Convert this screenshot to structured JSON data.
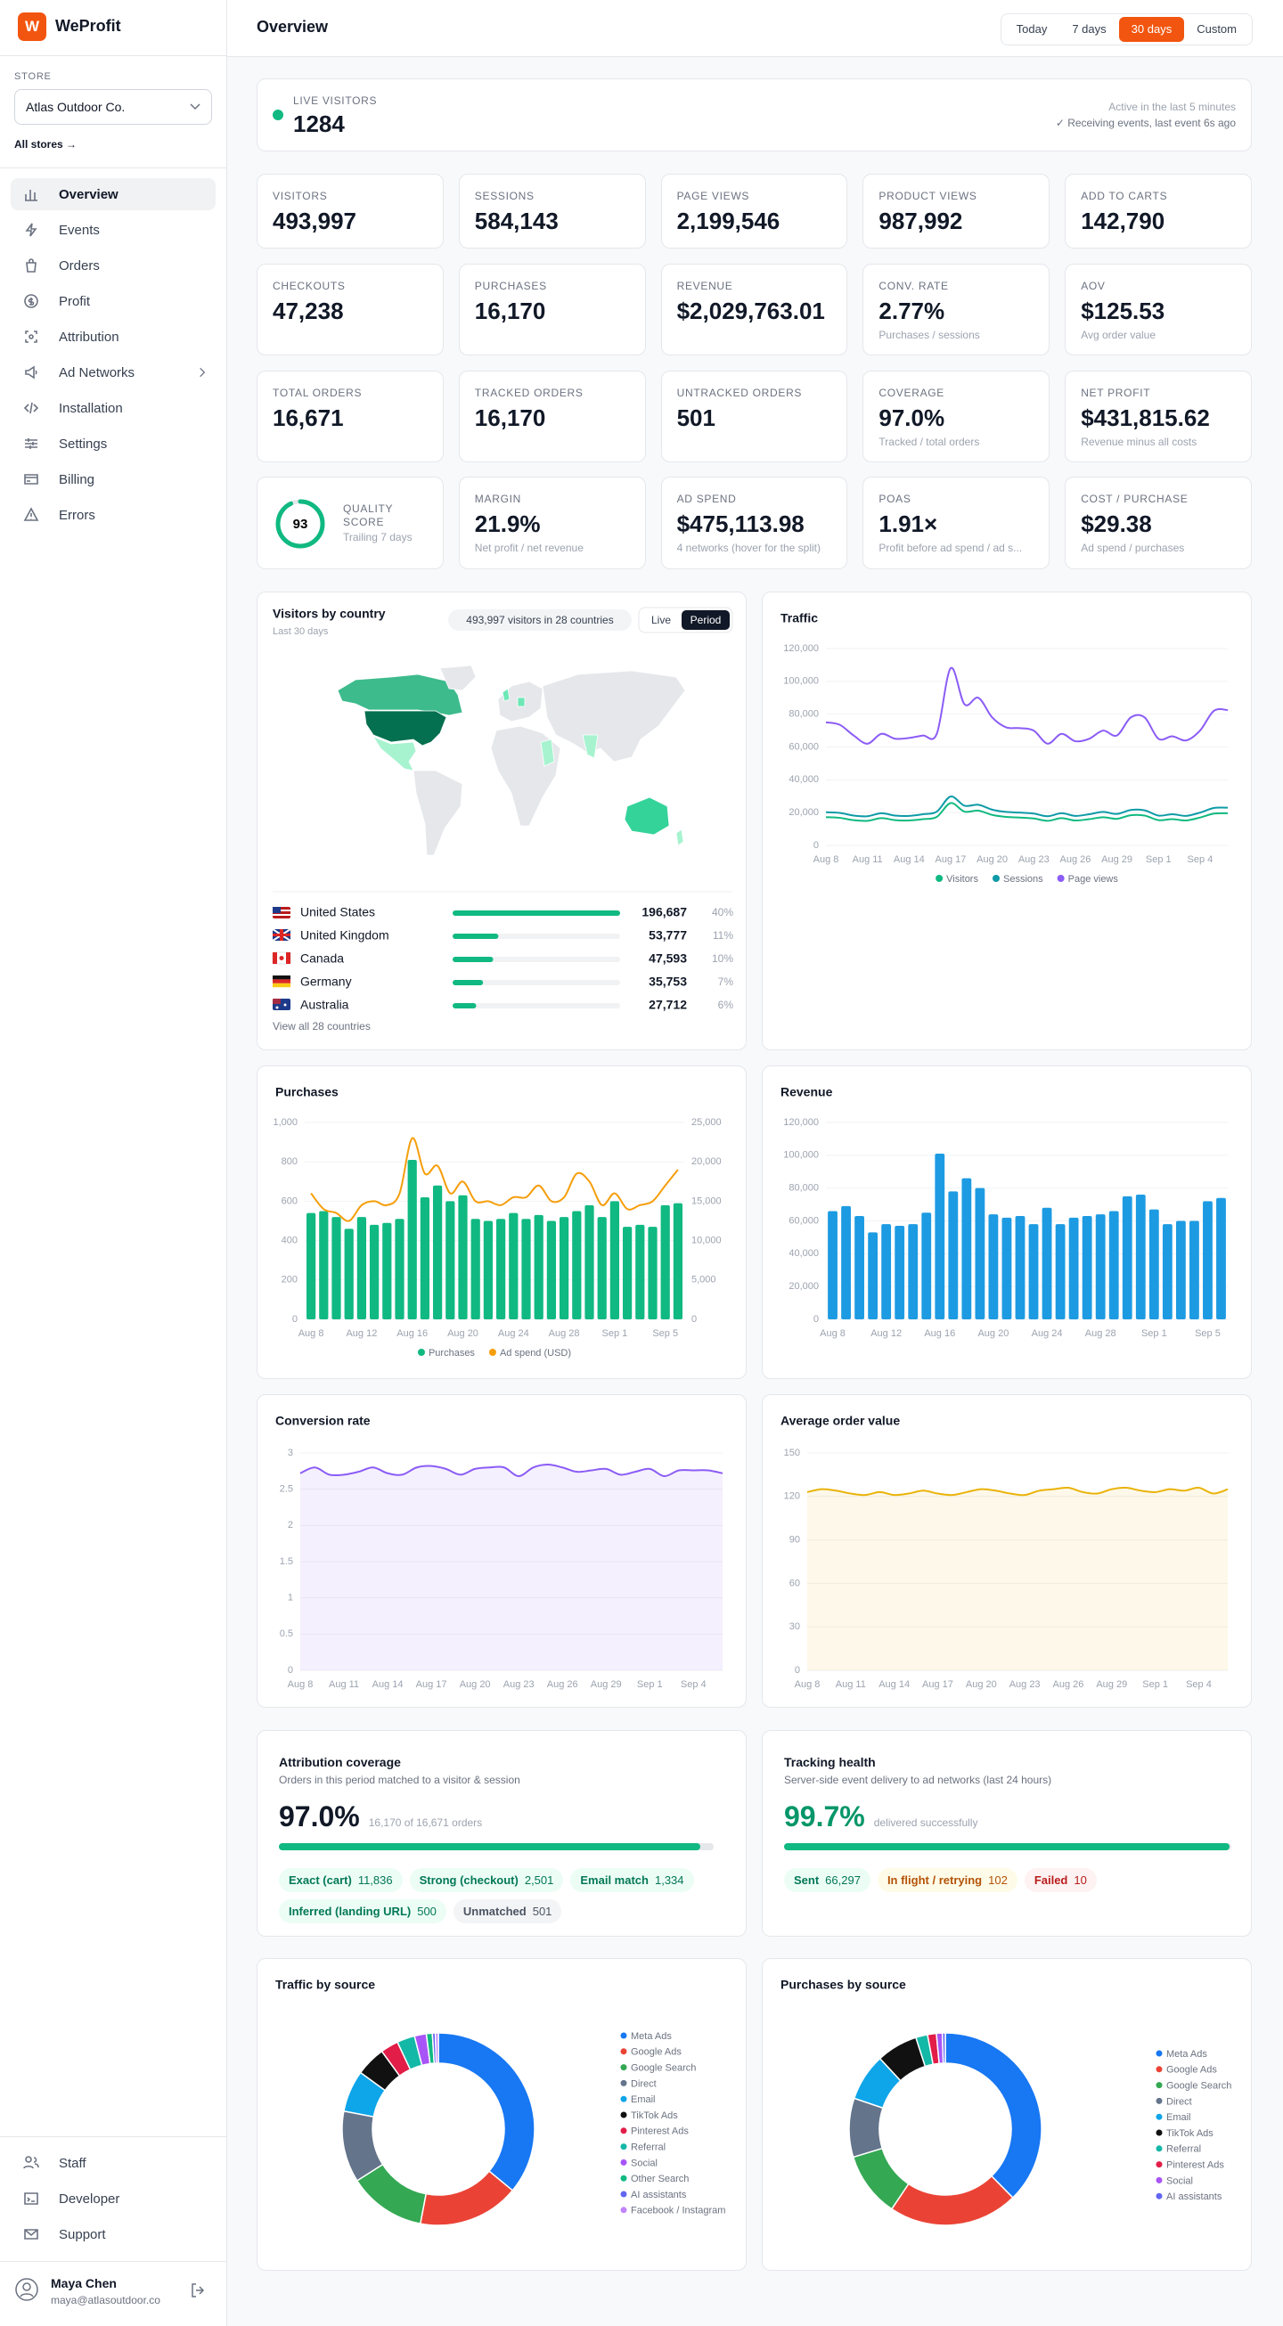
{
  "sidebar": {
    "brand": "WeProfit",
    "logo": "W",
    "store_label": "STORE",
    "store": "Atlas Outdoor Co.",
    "all_stores": "All stores →",
    "nav": [
      "Overview",
      "Events",
      "Orders",
      "Profit",
      "Attribution",
      "Ad Networks",
      "Installation",
      "Settings",
      "Billing",
      "Errors"
    ],
    "active_nav": 0,
    "footer_nav": [
      "Staff",
      "Developer",
      "Support"
    ],
    "user": {
      "name": "Maya Chen",
      "email": "maya@atlasoutdoor.co"
    }
  },
  "header": {
    "title": "Overview",
    "ranges": [
      "Today",
      "7 days",
      "30 days",
      "Custom"
    ],
    "active_range": 2
  },
  "live": {
    "label": "LIVE VISITORS",
    "value": "1284",
    "note": "Active in the last 5 minutes",
    "status": "✓ Receiving events, last event 6s ago"
  },
  "kpis": [
    {
      "label": "VISITORS",
      "value": "493,997"
    },
    {
      "label": "SESSIONS",
      "value": "584,143"
    },
    {
      "label": "PAGE VIEWS",
      "value": "2,199,546"
    },
    {
      "label": "PRODUCT VIEWS",
      "value": "987,992"
    },
    {
      "label": "ADD TO CARTS",
      "value": "142,790"
    },
    {
      "label": "CHECKOUTS",
      "value": "47,238"
    },
    {
      "label": "PURCHASES",
      "value": "16,170"
    },
    {
      "label": "REVENUE",
      "value": "$2,029,763.01"
    },
    {
      "label": "CONV. RATE",
      "value": "2.77%",
      "sub": "Purchases / sessions"
    },
    {
      "label": "AOV",
      "value": "$125.53",
      "sub": "Avg order value"
    },
    {
      "label": "TOTAL ORDERS",
      "value": "16,671"
    },
    {
      "label": "TRACKED ORDERS",
      "value": "16,170"
    },
    {
      "label": "UNTRACKED ORDERS",
      "value": "501"
    },
    {
      "label": "COVERAGE",
      "value": "97.0%",
      "sub": "Tracked / total orders"
    },
    {
      "label": "NET PROFIT",
      "value": "$431,815.62",
      "sub": "Revenue minus all costs"
    },
    {
      "label": "MARGIN",
      "value": "21.9%",
      "sub": "Net profit / net revenue"
    },
    {
      "label": "AD SPEND",
      "value": "$475,113.98",
      "sub": "4 networks (hover for the split)"
    },
    {
      "label": "POAS",
      "value": "1.91×",
      "sub": "Profit before ad spend / ad s..."
    },
    {
      "label": "COST / PURCHASE",
      "value": "$29.38",
      "sub": "Ad spend / purchases"
    }
  ],
  "quality": {
    "label": "QUALITY SCORE",
    "value": 93,
    "sub": "Trailing 7 days"
  },
  "attribution": {
    "title": "Attribution coverage",
    "subtitle": "Orders in this period matched to a visitor & session",
    "value": 97.0,
    "value_label": "97.0%",
    "detail": "16,170 of 16,671 orders",
    "pills": [
      {
        "label": "Exact (cart)",
        "value": "11,836",
        "tone": "green"
      },
      {
        "label": "Strong (checkout)",
        "value": "2,501",
        "tone": "green"
      },
      {
        "label": "Email match",
        "value": "1,334",
        "tone": "green"
      },
      {
        "label": "Inferred (landing URL)",
        "value": "500",
        "tone": "green"
      },
      {
        "label": "Unmatched",
        "value": "501",
        "tone": "gray"
      }
    ]
  },
  "tracking": {
    "title": "Tracking health",
    "subtitle": "Server-side event delivery to ad networks (last 24 hours)",
    "value": 99.7,
    "value_label": "99.7%",
    "detail": "delivered successfully",
    "pills": [
      {
        "label": "Sent",
        "value": "66,297",
        "tone": "green"
      },
      {
        "label": "In flight / retrying",
        "value": "102",
        "tone": "amber"
      },
      {
        "label": "Failed",
        "value": "10",
        "tone": "red"
      }
    ]
  },
  "chart_data": [
    {
      "type": "hbar",
      "title": "Visitors by country",
      "subtitle": "Last 30 days",
      "summary": "493,997 visitors in 28 countries",
      "toggles": [
        "Live",
        "Period"
      ],
      "active_toggle": 1,
      "categories": [
        "United States",
        "United Kingdom",
        "Canada",
        "Germany",
        "Australia"
      ],
      "values": [
        196687,
        53777,
        47593,
        35753,
        27712
      ],
      "value_labels": [
        "196,687",
        "53,777",
        "47,593",
        "35,753",
        "27,712"
      ],
      "shares": [
        "40%",
        "11%",
        "10%",
        "7%",
        "6%"
      ],
      "color": "#10b981",
      "footer": "View all 28 countries"
    },
    {
      "type": "line",
      "title": "Traffic",
      "categories": [
        "Aug 8",
        null,
        null,
        "Aug 11",
        null,
        null,
        "Aug 14",
        null,
        null,
        "Aug 17",
        null,
        null,
        "Aug 20",
        null,
        null,
        "Aug 23",
        null,
        null,
        "Aug 26",
        null,
        null,
        "Aug 29",
        null,
        null,
        "Sep 1",
        null,
        null,
        "Sep 4",
        null,
        null
      ],
      "series": [
        {
          "name": "Visitors",
          "color": "#10b981",
          "values": [
            17200,
            16800,
            15400,
            15000,
            16600,
            15400,
            15200,
            16000,
            17400,
            25800,
            20600,
            21200,
            18600,
            17400,
            17000,
            16400,
            15000,
            16600,
            15200,
            16000,
            17200,
            16200,
            18400,
            18200,
            15400,
            16000,
            15200,
            17000,
            19400,
            19600
          ]
        },
        {
          "name": "Sessions",
          "color": "#0e9aa7",
          "values": [
            20200,
            19800,
            18200,
            17800,
            19600,
            18200,
            18000,
            19000,
            20600,
            29800,
            24200,
            24800,
            21800,
            20400,
            20000,
            19400,
            17800,
            19600,
            18000,
            19000,
            20400,
            19200,
            21600,
            21400,
            18200,
            19000,
            18000,
            20000,
            22800,
            23000
          ]
        },
        {
          "name": "Page views",
          "color": "#8b5cf6",
          "values": [
            75000,
            73500,
            67000,
            62000,
            68000,
            65000,
            65500,
            67000,
            68000,
            108000,
            86000,
            90000,
            78000,
            72000,
            71500,
            70000,
            62000,
            68000,
            63500,
            65000,
            70000,
            67000,
            78000,
            78000,
            65000,
            66500,
            64000,
            70000,
            82000,
            82500
          ]
        }
      ],
      "ylim": [
        0,
        120000
      ],
      "yticks": [
        0,
        {
          "value": 20000,
          "label": "20,000"
        },
        {
          "value": 40000,
          "label": "40,000"
        },
        {
          "value": 60000,
          "label": "60,000"
        },
        {
          "value": 80000,
          "label": "80,000"
        },
        {
          "value": 100000,
          "label": "100,000"
        },
        {
          "value": 120000,
          "label": "120,000"
        }
      ],
      "grid": true,
      "legend": "bottom"
    },
    {
      "type": "bar",
      "title": "Purchases",
      "categories": [
        "Aug 8",
        null,
        null,
        null,
        "Aug 12",
        null,
        null,
        null,
        "Aug 16",
        null,
        null,
        null,
        "Aug 20",
        null,
        null,
        null,
        "Aug 24",
        null,
        null,
        null,
        "Aug 28",
        null,
        null,
        null,
        "Sep 1",
        null,
        null,
        null,
        "Sep 5",
        null
      ],
      "series": [
        {
          "name": "Purchases",
          "color": "#10b981",
          "values": [
            540,
            550,
            520,
            460,
            520,
            480,
            490,
            510,
            810,
            620,
            680,
            600,
            630,
            510,
            500,
            510,
            540,
            510,
            530,
            500,
            520,
            550,
            580,
            520,
            600,
            470,
            480,
            470,
            580,
            590
          ]
        },
        {
          "name": "Ad spend (USD)",
          "color": "#f59e0b",
          "axis": "y2",
          "values": [
            16000,
            14000,
            13500,
            12500,
            14500,
            15000,
            14500,
            16000,
            23000,
            18500,
            19500,
            16000,
            17500,
            15000,
            15000,
            14500,
            15500,
            15500,
            17000,
            15000,
            15500,
            18500,
            17500,
            14500,
            16000,
            14000,
            14500,
            15000,
            17000,
            19000
          ]
        }
      ],
      "ylim": [
        0,
        1000
      ],
      "yticks": [
        0,
        200,
        400,
        600,
        800,
        {
          "value": 1000,
          "label": "1,000"
        }
      ],
      "y2lim": [
        0,
        25000
      ],
      "y2ticks": [
        0,
        {
          "value": 5000,
          "label": "5,000"
        },
        {
          "value": 10000,
          "label": "10,000"
        },
        {
          "value": 15000,
          "label": "15,000"
        },
        {
          "value": 20000,
          "label": "20,000"
        },
        {
          "value": 25000,
          "label": "25,000"
        }
      ],
      "grid": true,
      "legend": "bottom"
    },
    {
      "type": "bar",
      "title": "Revenue",
      "categories": [
        "Aug 8",
        null,
        null,
        null,
        "Aug 12",
        null,
        null,
        null,
        "Aug 16",
        null,
        null,
        null,
        "Aug 20",
        null,
        null,
        null,
        "Aug 24",
        null,
        null,
        null,
        "Aug 28",
        null,
        null,
        null,
        "Sep 1",
        null,
        null,
        null,
        "Sep 5",
        null
      ],
      "series": [
        {
          "name": "Revenue",
          "color": "#1d9be2",
          "values": [
            66000,
            69000,
            63000,
            53000,
            58000,
            57000,
            58000,
            65000,
            101000,
            78000,
            86000,
            80000,
            64000,
            62000,
            63000,
            58000,
            68000,
            58000,
            62000,
            63000,
            64000,
            66000,
            75000,
            76000,
            67000,
            58000,
            60000,
            60000,
            72000,
            74000
          ]
        }
      ],
      "ylim": [
        0,
        120000
      ],
      "yticks": [
        0,
        {
          "value": 20000,
          "label": "20,000"
        },
        {
          "value": 40000,
          "label": "40,000"
        },
        {
          "value": 60000,
          "label": "60,000"
        },
        {
          "value": 80000,
          "label": "80,000"
        },
        {
          "value": 100000,
          "label": "100,000"
        },
        {
          "value": 120000,
          "label": "120,000"
        }
      ],
      "grid": true
    },
    {
      "type": "area",
      "title": "Conversion rate",
      "categories": [
        "Aug 8",
        null,
        null,
        "Aug 11",
        null,
        null,
        "Aug 14",
        null,
        null,
        "Aug 17",
        null,
        null,
        "Aug 20",
        null,
        null,
        "Aug 23",
        null,
        null,
        "Aug 26",
        null,
        null,
        "Aug 29",
        null,
        null,
        "Sep 1",
        null,
        null,
        "Sep 4",
        null,
        null
      ],
      "series": [
        {
          "name": "Conversion rate",
          "color": "#8b5cf6",
          "values": [
            2.72,
            2.8,
            2.7,
            2.7,
            2.74,
            2.8,
            2.72,
            2.7,
            2.8,
            2.82,
            2.78,
            2.7,
            2.78,
            2.8,
            2.8,
            2.68,
            2.8,
            2.84,
            2.8,
            2.74,
            2.76,
            2.78,
            2.7,
            2.74,
            2.78,
            2.68,
            2.76,
            2.76,
            2.76,
            2.72
          ]
        }
      ],
      "ylim": [
        0,
        3
      ],
      "yticks": [
        0,
        0.5,
        1,
        1.5,
        2,
        2.5,
        3
      ],
      "grid": true
    },
    {
      "type": "area",
      "title": "Average order value",
      "categories": [
        "Aug 8",
        null,
        null,
        "Aug 11",
        null,
        null,
        "Aug 14",
        null,
        null,
        "Aug 17",
        null,
        null,
        "Aug 20",
        null,
        null,
        "Aug 23",
        null,
        null,
        "Aug 26",
        null,
        null,
        "Aug 29",
        null,
        null,
        "Sep 1",
        null,
        null,
        "Sep 4",
        null,
        null
      ],
      "series": [
        {
          "name": "Average order value",
          "color": "#eab308",
          "values": [
            123,
            125,
            124,
            122,
            121,
            123,
            121,
            122,
            124,
            122,
            121,
            123,
            125,
            124,
            122,
            121,
            124,
            125,
            126,
            123,
            122,
            125,
            126,
            124,
            123,
            125,
            124,
            126,
            122,
            125
          ]
        }
      ],
      "ylim": [
        0,
        150
      ],
      "yticks": [
        0,
        30,
        60,
        90,
        120,
        150
      ],
      "grid": true
    },
    {
      "type": "donut",
      "title": "Traffic by source",
      "categories": [
        "Meta Ads",
        "Google Ads",
        "Google Search",
        "Direct",
        "Email",
        "TikTok Ads",
        "Pinterest Ads",
        "Referral",
        "Social",
        "Other Search",
        "AI assistants",
        "Facebook / Instagram"
      ],
      "values": [
        36,
        17,
        13,
        12,
        7,
        5,
        3,
        3,
        2,
        1,
        0.5,
        0.5
      ],
      "colors": [
        "#1877f2",
        "#ea4335",
        "#34a853",
        "#64748b",
        "#0ea5e9",
        "#111111",
        "#e11d48",
        "#14b8a6",
        "#a855f7",
        "#10b981",
        "#6366f1",
        "#c084fc"
      ]
    },
    {
      "type": "donut",
      "title": "Purchases by source",
      "categories": [
        "Meta Ads",
        "Google Ads",
        "Google Search",
        "Direct",
        "Email",
        "TikTok Ads",
        "Referral",
        "Pinterest Ads",
        "Social",
        "AI assistants"
      ],
      "values": [
        38,
        22,
        11,
        10,
        8,
        7,
        2,
        1.5,
        1,
        0.5
      ],
      "colors": [
        "#1877f2",
        "#ea4335",
        "#34a853",
        "#64748b",
        "#0ea5e9",
        "#111111",
        "#14b8a6",
        "#e11d48",
        "#a855f7",
        "#6366f1"
      ]
    }
  ]
}
